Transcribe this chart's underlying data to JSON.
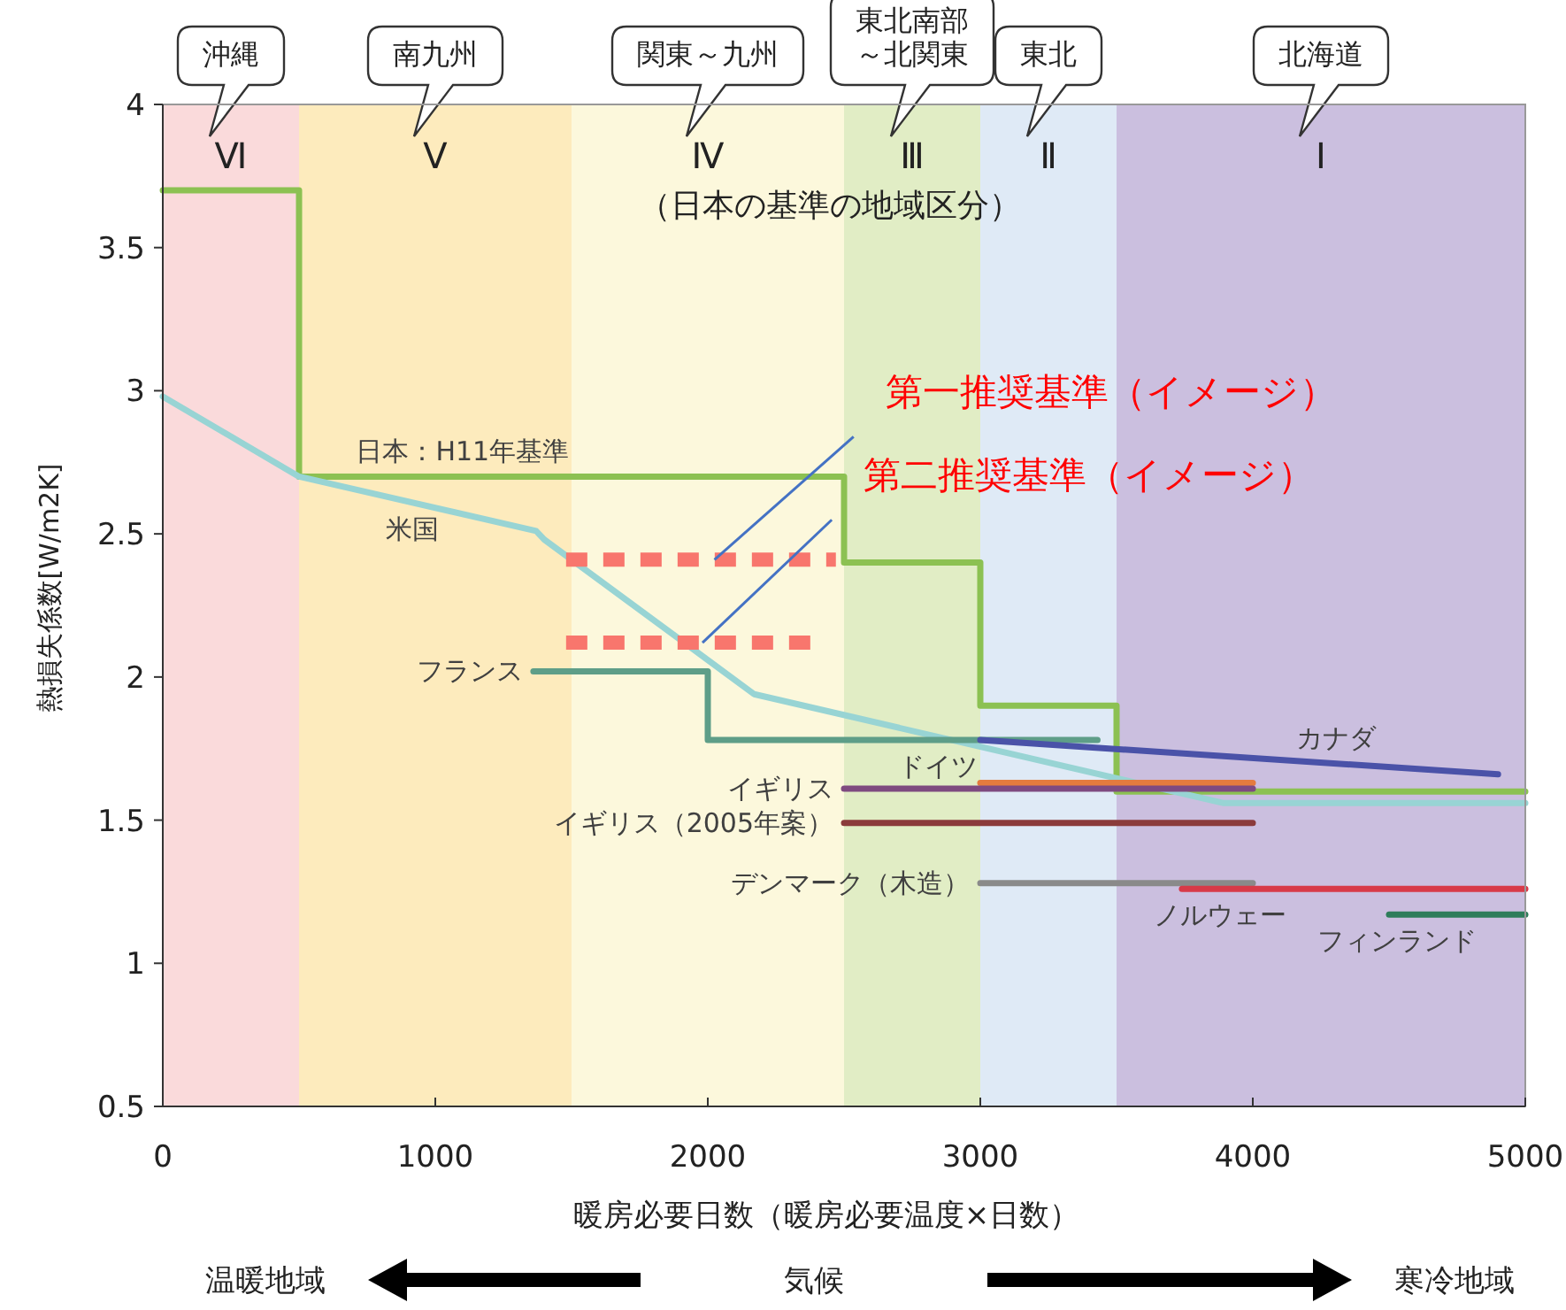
{
  "chart_data": {
    "type": "line",
    "xlabel": "暖房必要日数（暖房必要温度×日数）",
    "ylabel": "熱損失係数[W/m2K]",
    "xlim": [
      0,
      5000
    ],
    "ylim": [
      0.5,
      4
    ],
    "xticks": [
      0,
      1000,
      2000,
      3000,
      4000,
      5000
    ],
    "yticks": [
      0.5,
      1,
      1.5,
      2,
      2.5,
      3,
      3.5,
      4
    ],
    "bands": [
      {
        "axis": "x",
        "from": 0,
        "to": 500,
        "label": "Ⅵ",
        "color": "#fadadb"
      },
      {
        "axis": "x",
        "from": 500,
        "to": 1500,
        "label": "Ⅴ",
        "color": "#fdebbd"
      },
      {
        "axis": "x",
        "from": 1500,
        "to": 2500,
        "label": "Ⅳ",
        "color": "#fcf8dc"
      },
      {
        "axis": "x",
        "from": 2500,
        "to": 3000,
        "label": "Ⅲ",
        "color": "#e1edc5"
      },
      {
        "axis": "x",
        "from": 3000,
        "to": 3500,
        "label": "Ⅱ",
        "color": "#dfeaf6"
      },
      {
        "axis": "x",
        "from": 3500,
        "to": 5000,
        "label": "Ⅰ",
        "color": "#cbbfdf"
      }
    ],
    "series": [
      {
        "color": "#8cc152",
        "x": [
          0,
          500,
          500,
          2500,
          2500,
          3000,
          3000,
          3500,
          3500,
          5000
        ],
        "values": [
          3.7,
          3.7,
          2.7,
          2.7,
          2.4,
          2.4,
          1.9,
          1.9,
          1.6,
          1.6
        ]
      },
      {
        "color": "#98d4d4",
        "x": [
          0,
          500,
          1370,
          1400,
          2170,
          3890,
          5000
        ],
        "values": [
          2.98,
          2.7,
          2.51,
          2.48,
          1.94,
          1.56,
          1.56
        ]
      },
      {
        "color": "#5e9e88",
        "x": [
          1360,
          2000,
          2000,
          3430
        ],
        "values": [
          2.02,
          2.02,
          1.78,
          1.78
        ]
      },
      {
        "color": "#4a52a8",
        "x": [
          3000,
          4900
        ],
        "values": [
          1.78,
          1.66
        ]
      },
      {
        "color": "#e47b3e",
        "x": [
          3000,
          4000
        ],
        "values": [
          1.63,
          1.63
        ]
      },
      {
        "color": "#7e4a80",
        "x": [
          2500,
          4000
        ],
        "values": [
          1.61,
          1.61
        ]
      },
      {
        "color": "#8b3b3b",
        "x": [
          2500,
          4000
        ],
        "values": [
          1.49,
          1.49
        ]
      },
      {
        "color": "#8a8a8a",
        "x": [
          3000,
          4000
        ],
        "values": [
          1.28,
          1.28
        ]
      },
      {
        "color": "#d83a48",
        "x": [
          3740,
          5000
        ],
        "values": [
          1.26,
          1.26
        ]
      },
      {
        "color": "#2e7d5a",
        "x": [
          4500,
          5000
        ],
        "values": [
          1.17,
          1.17
        ]
      },
      {
        "name": "第一推奨基準（イメージ）",
        "color": "#f8766d",
        "line_style": "dashed",
        "x": [
          1480,
          2470
        ],
        "values": [
          2.41,
          2.41
        ]
      },
      {
        "name": "第二推奨基準（イメージ）",
        "color": "#f8766d",
        "line_style": "dashed",
        "x": [
          1480,
          2390
        ],
        "values": [
          2.12,
          2.12
        ]
      }
    ],
    "annotations": [
      "沖縄",
      "南九州",
      "関東～九州",
      "東北南部～北関東",
      "東北",
      "北海道",
      "（日本の基準の地域区分）",
      "温暖地域",
      "気候",
      "寒冷地域",
      {
        "text": "日本：H11年基準",
        "x": 1100,
        "y": 2.7
      },
      {
        "text": "米国",
        "x": 915,
        "y": 2.61
      },
      {
        "text": "フランス",
        "x": 1360,
        "y": 2.02
      },
      {
        "text": "ドイツ",
        "x": 2845,
        "y": 1.78
      },
      {
        "text": "カナダ",
        "x": 4305,
        "y": 1.7
      },
      {
        "text": "イギリス",
        "x": 2500,
        "y": 1.61
      },
      {
        "text": "イギリス（2005年案）",
        "x": 2500,
        "y": 1.49
      },
      {
        "text": "デンマーク（木造）",
        "x": 3000,
        "y": 1.28
      },
      {
        "text": "ノルウェー",
        "x": 3880,
        "y": 1.26
      },
      {
        "text": "フィンランド",
        "x": 4530,
        "y": 1.17
      }
    ]
  }
}
